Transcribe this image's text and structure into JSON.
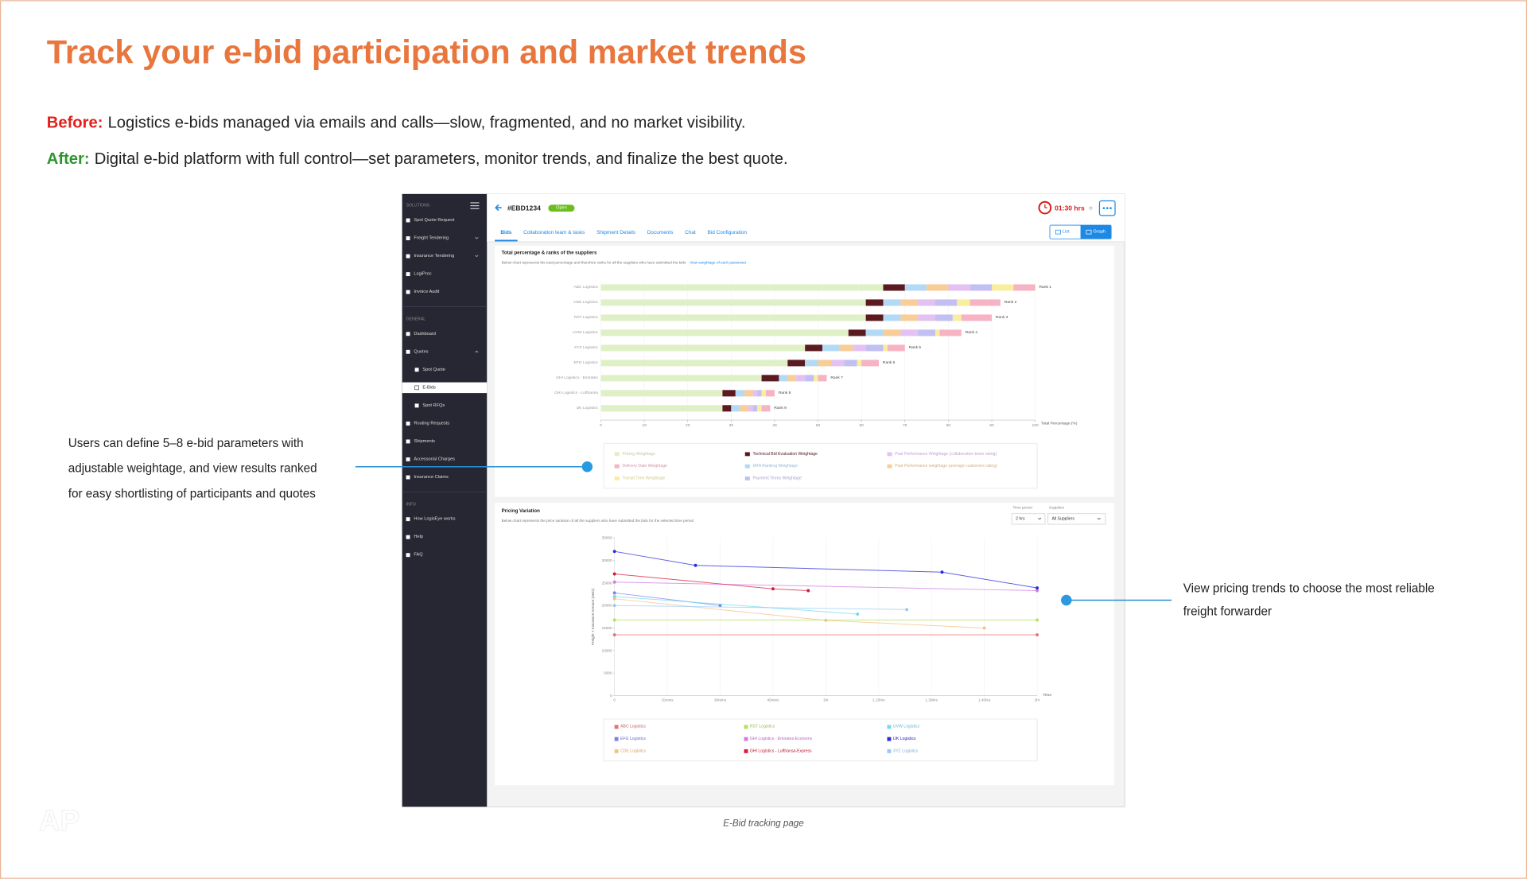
{
  "header": {
    "title": "Track your e-bid participation and market trends",
    "before_label": "Before:",
    "before_text": "Logistics e-bids managed via emails and calls—slow, fragmented, and no market visibility.",
    "after_label": "After:",
    "after_text": "Digital e-bid platform with full control—set parameters, monitor trends, and finalize the best quote."
  },
  "annotations": [
    {
      "lines": [
        "Users can define 5–8 e-bid parameters with",
        "adjustable weightage, and view results ranked",
        "for easy shortlisting of participants and quotes"
      ]
    },
    {
      "lines": [
        "View pricing trends to choose the most reliable",
        "freight forwarder"
      ]
    }
  ],
  "caption": "E-Bid tracking page",
  "app": {
    "sidebar": {
      "sections": [
        {
          "title": "SOLUTIONS",
          "items": [
            {
              "label": "Spot Quote Request"
            },
            {
              "label": "Freight Tendering",
              "expandable": true
            },
            {
              "label": "Insurance Tendering",
              "expandable": true
            },
            {
              "label": "LogiProc"
            },
            {
              "label": "Invoice Audit"
            }
          ]
        },
        {
          "title": "GENERAL",
          "items": [
            {
              "label": "Dashboard"
            },
            {
              "label": "Quotes",
              "children": [
                {
                  "label": "Spot Quote"
                },
                {
                  "label": "E-Bids",
                  "active": true
                },
                {
                  "label": "Spot RFQs"
                }
              ]
            },
            {
              "label": "Routing Requests"
            },
            {
              "label": "Shipments"
            },
            {
              "label": "Accessorial Charges"
            },
            {
              "label": "Insurance Claims"
            }
          ]
        },
        {
          "title": "INFO",
          "items": [
            {
              "label": "How LogisEye works"
            },
            {
              "label": "Help"
            },
            {
              "label": "FAQ"
            }
          ]
        }
      ]
    },
    "bid_id": "#EBD1234",
    "status": "Open",
    "timer": "01:30 hrs",
    "tabs": [
      "Bids",
      "Collaboration team & tasks",
      "Shipment Details",
      "Documents",
      "Chat",
      "Bid Configuration"
    ],
    "active_tab": 0,
    "view_toggle": [
      "List",
      "Graph"
    ],
    "active_view": 1,
    "pricing_controls": {
      "time_period_label": "Time period",
      "time_period": "2 hrs",
      "suppliers_label": "Suppliers",
      "suppliers": "All Suppliers"
    }
  },
  "chart_data": [
    {
      "type": "bar",
      "orientation": "horizontal",
      "stacked": true,
      "title": "Total percentage & ranks of the suppliers",
      "subtitle": "Below chart represents the total percentage and therefore ranks for all the suppliers who have submitted the bids",
      "link": "View weightage of each parameter",
      "categories": [
        "ABC Logistics",
        "CDE Logistics",
        "RST Logistics",
        "UVW Logistics",
        "XYZ Logistics",
        "EFG Logistics",
        "GHI Logistics - Emirates",
        "GHI Logistics - Lufthansa",
        "IJK Logistics"
      ],
      "rank_labels": [
        "Rank 1",
        "Rank 2",
        "Rank 3",
        "Rank 4",
        "Rank 5",
        "Rank 6",
        "Rank 7",
        "Rank 8",
        "Rank 9"
      ],
      "series": [
        {
          "name": "Pricing Weightage",
          "color": "#dff0c6",
          "values": [
            65,
            61,
            61,
            57,
            47,
            43,
            37,
            28,
            28
          ]
        },
        {
          "name": "Delivery Date Weightage",
          "color": "#f6b3c4",
          "values": [
            5,
            7,
            7,
            5,
            4,
            4,
            2,
            2,
            2
          ]
        },
        {
          "name": "Transit Time Weightage",
          "color": "#f7ee9e",
          "values": [
            5,
            3,
            2,
            1,
            1,
            1,
            1,
            1,
            1
          ]
        },
        {
          "name": "Technical Bid Evaluation Weightage",
          "color": "#5a1a20",
          "values": [
            5,
            4,
            4,
            4,
            4,
            4,
            4,
            3,
            2
          ]
        },
        {
          "name": "IATA Ranking Weightage",
          "color": "#b3daf4",
          "values": [
            5,
            4,
            4,
            4,
            4,
            3,
            2,
            2,
            2
          ]
        },
        {
          "name": "Payment Terms Weightage",
          "color": "#c2bff2",
          "values": [
            5,
            5,
            4,
            4,
            4,
            3,
            2,
            1,
            1
          ]
        },
        {
          "name": "Past Performance Weightage (collaboration team rating)",
          "color": "#e3c1f3",
          "values": [
            5,
            4,
            4,
            4,
            3,
            3,
            2,
            1,
            1
          ]
        },
        {
          "name": "Past Performance weightage (average customers rating)",
          "color": "#f8cd98",
          "values": [
            5,
            4,
            4,
            4,
            3,
            3,
            2,
            2,
            2
          ]
        }
      ],
      "xlim": [
        0,
        100
      ],
      "xticks": [
        0,
        10,
        20,
        30,
        40,
        50,
        60,
        70,
        80,
        90,
        100
      ],
      "xlabel": "Total Percentage (%)",
      "grid": true
    },
    {
      "type": "line",
      "title": "Pricing Variation",
      "subtitle": "Below chart represents the price variation of all the suppliers who have submitted the bids for the selected time period",
      "xlabel": "Time",
      "ylabel": "Freight + Insurance Amount (AED)",
      "xlim": [
        0,
        120
      ],
      "xticks": [
        0,
        {
          "value": 15,
          "label": "15mins"
        },
        {
          "value": 30,
          "label": "30mins"
        },
        {
          "value": 45,
          "label": "45mins"
        },
        {
          "value": 60,
          "label": "1hr"
        },
        {
          "value": 75,
          "label": "1.15hrs"
        },
        {
          "value": 90,
          "label": "1.30hrs"
        },
        {
          "value": 105,
          "label": "1.45hrs"
        },
        {
          "value": 120,
          "label": "2hr"
        }
      ],
      "ylim": [
        0,
        35000
      ],
      "yticks": [
        0,
        5000,
        10000,
        15000,
        20000,
        25000,
        30000,
        35000
      ],
      "grid": true,
      "series": [
        {
          "name": "ABC Logistics",
          "color": "#e57373",
          "x": [
            0,
            120
          ],
          "values": [
            13500,
            13500
          ]
        },
        {
          "name": "EFG Logistics",
          "color": "#7f7fe8",
          "x": [
            0,
            30
          ],
          "values": [
            22800,
            20000
          ]
        },
        {
          "name": "CDE Logistics",
          "color": "#f4c088",
          "x": [
            0,
            60,
            105
          ],
          "values": [
            21500,
            16700,
            15000
          ]
        },
        {
          "name": "RST Logistics",
          "color": "#b6e065",
          "x": [
            0,
            120
          ],
          "values": [
            16800,
            16800
          ]
        },
        {
          "name": "GHI Logistics - Emirates-Economy",
          "color": "#d27ae6",
          "x": [
            0,
            120
          ],
          "values": [
            25200,
            23300
          ]
        },
        {
          "name": "GHI Logistics - Lufthansa-Express",
          "color": "#d41c3a",
          "x": [
            0,
            45,
            55
          ],
          "values": [
            27000,
            23700,
            23300
          ]
        },
        {
          "name": "UVW Logistics",
          "color": "#72dcee",
          "x": [
            0,
            69
          ],
          "values": [
            22000,
            18100
          ]
        },
        {
          "name": "IJK Logistics",
          "color": "#2b2bdc",
          "x": [
            0,
            23,
            93,
            120
          ],
          "values": [
            32000,
            28900,
            27400,
            23900
          ]
        },
        {
          "name": "XYZ Logistics",
          "color": "#94caf3",
          "x": [
            0,
            83
          ],
          "values": [
            20000,
            19100
          ]
        }
      ]
    }
  ]
}
